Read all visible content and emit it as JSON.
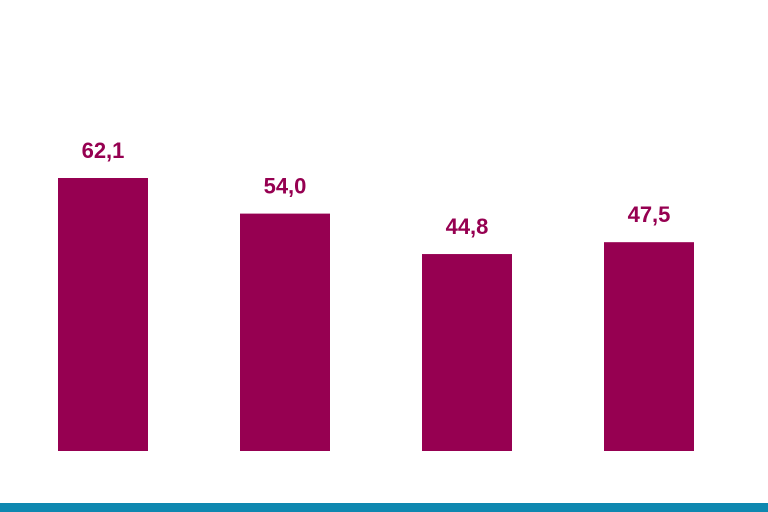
{
  "chart_data": {
    "type": "bar",
    "categories": [
      null,
      null,
      null,
      null
    ],
    "values": [
      62.1,
      54.0,
      44.8,
      47.5
    ],
    "value_labels": [
      "62,1",
      "54,0",
      "44,8",
      "47,5"
    ],
    "color": "#960051"
  }
}
